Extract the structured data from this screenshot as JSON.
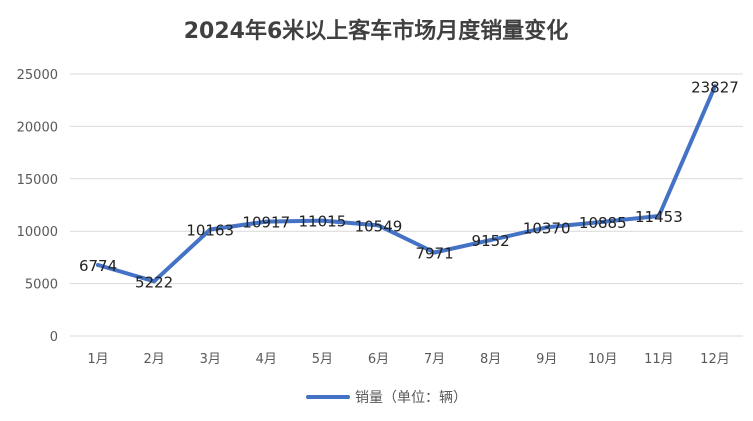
{
  "chart_data": {
    "type": "line",
    "title": "2024年6米以上客车市场月度销量变化",
    "xlabel": "",
    "ylabel": "",
    "categories": [
      "1月",
      "2月",
      "3月",
      "4月",
      "5月",
      "6月",
      "7月",
      "8月",
      "9月",
      "10月",
      "11月",
      "12月"
    ],
    "series": [
      {
        "name": "销量（单位：辆）",
        "values": [
          6774,
          5222,
          10163,
          10917,
          11015,
          10549,
          7971,
          9152,
          10370,
          10885,
          11453,
          23827
        ],
        "color": "#4472C4"
      }
    ],
    "ylim": [
      0,
      25000
    ],
    "yticks": [
      0,
      5000,
      10000,
      15000,
      20000,
      25000
    ],
    "grid": true,
    "legend": "bottom"
  }
}
